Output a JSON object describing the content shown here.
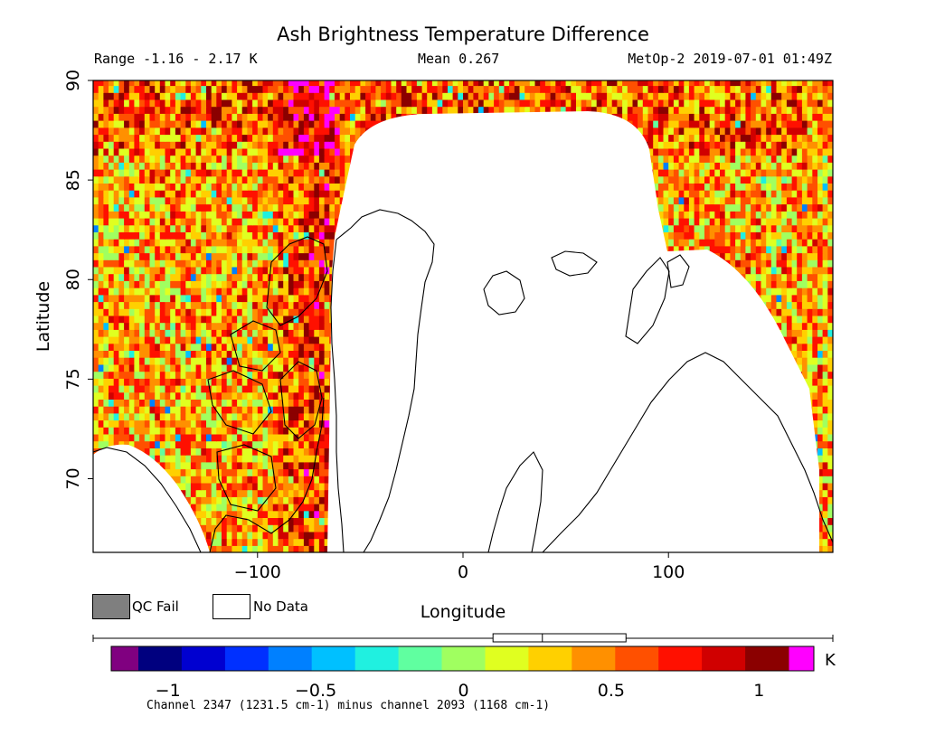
{
  "header": {
    "title": "Ash Brightness Temperature Difference",
    "range": "Range -1.16 - 2.17 K",
    "mean": "Mean 0.267",
    "satellite": "MetOp-2 2019-07-01 01:49Z"
  },
  "legend": {
    "qc_fail": "QC Fail",
    "no_data": "No Data"
  },
  "colorbar": {
    "unit": "K",
    "caption": "Channel 2347 (1231.5 cm-1) minus channel 2093 (1168 cm-1)",
    "min": -1.1,
    "max": 1.1,
    "ticks": [
      -1,
      -0.5,
      0,
      0.5,
      1
    ],
    "tick_labels": [
      "−1",
      "−0.5",
      "0",
      "0.5",
      "1"
    ],
    "under_color": "#800080",
    "over_color": "#ff00ff",
    "colors": [
      "#00007f",
      "#0000d0",
      "#0030ff",
      "#0080ff",
      "#00c0ff",
      "#20f0e0",
      "#60ffa0",
      "#a0ff60",
      "#e0ff20",
      "#ffd000",
      "#ff9000",
      "#ff5000",
      "#ff1000",
      "#d00000",
      "#8b0000"
    ],
    "range_indicator": {
      "min": -1.16,
      "max": 2.17,
      "mean": 0.267
    }
  },
  "chart_data": {
    "type": "heatmap",
    "title": "Ash Brightness Temperature Difference",
    "xlabel": "Longitude",
    "ylabel": "Latitude",
    "xlim": [
      -180,
      180
    ],
    "ylim": [
      66.3,
      90
    ],
    "xticks": [
      -100,
      0,
      100
    ],
    "yticks": [
      70,
      75,
      80,
      85,
      90
    ],
    "unit": "K",
    "value_range": [
      -1.16,
      2.17
    ],
    "mean": 0.267,
    "colors": {
      "qc_fail": "#7f7f7f",
      "no_data": "#ffffff"
    }
  }
}
